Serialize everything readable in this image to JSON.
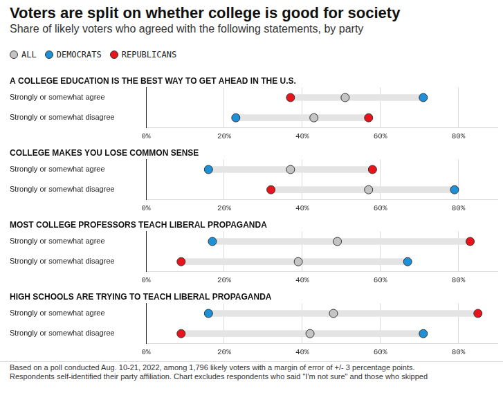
{
  "title": "Voters are split on whether college is good for society",
  "subtitle": "Share of likely voters who agreed with the following statements, by party",
  "note": [
    "Based on a poll conducted Aug. 10-21, 2022, among 1,796 likely voters with a margin of error of +/- 3 percentage points.",
    "Respondents self-identified their party affiliation. Chart excludes respondents who said \"I'm not sure\" and those who skipped"
  ],
  "chart_data": [
    {
      "type": "dot",
      "title": "A COLLEGE EDUCATION IS THE BEST WAY TO GET AHEAD IN THE U.S.",
      "orientation": "horizontal",
      "grid": true,
      "categories": [
        "Strongly or somewhat agree",
        "Strongly or somewhat disagree"
      ],
      "series": [
        {
          "name": "ALL",
          "color": "#c4c4c4",
          "values": [
            51,
            43
          ]
        },
        {
          "name": "DEMOCRATS",
          "color": "#1e90d8",
          "values": [
            71,
            23
          ]
        },
        {
          "name": "REPUBLICANS",
          "color": "#e8141c",
          "values": [
            37,
            57
          ]
        }
      ],
      "xlim": [
        0,
        90
      ],
      "xticks": [
        {
          "value": 0,
          "label": "0%"
        },
        {
          "value": 20,
          "label": "20%"
        },
        {
          "value": 40,
          "label": "40%"
        },
        {
          "value": 60,
          "label": "60%"
        },
        {
          "value": 80,
          "label": "80%"
        }
      ]
    },
    {
      "type": "dot",
      "title": "COLLEGE MAKES YOU LOSE COMMON SENSE",
      "orientation": "horizontal",
      "grid": true,
      "categories": [
        "Strongly or somewhat agree",
        "Strongly or somewhat disagree"
      ],
      "series": [
        {
          "name": "ALL",
          "color": "#c4c4c4",
          "values": [
            37,
            57
          ]
        },
        {
          "name": "DEMOCRATS",
          "color": "#1e90d8",
          "values": [
            16,
            79
          ]
        },
        {
          "name": "REPUBLICANS",
          "color": "#e8141c",
          "values": [
            58,
            32
          ]
        }
      ],
      "xlim": [
        0,
        90
      ],
      "xticks": [
        {
          "value": 0,
          "label": "0%"
        },
        {
          "value": 20,
          "label": "20%"
        },
        {
          "value": 40,
          "label": "40%"
        },
        {
          "value": 60,
          "label": "60%"
        },
        {
          "value": 80,
          "label": "80%"
        }
      ]
    },
    {
      "type": "dot",
      "title": "MOST COLLEGE PROFESSORS TEACH LIBERAL PROPAGANDA",
      "orientation": "horizontal",
      "grid": true,
      "categories": [
        "Strongly or somewhat agree",
        "Strongly or somewhat disagree"
      ],
      "series": [
        {
          "name": "ALL",
          "color": "#c4c4c4",
          "values": [
            49,
            39
          ]
        },
        {
          "name": "DEMOCRATS",
          "color": "#1e90d8",
          "values": [
            17,
            67
          ]
        },
        {
          "name": "REPUBLICANS",
          "color": "#e8141c",
          "values": [
            83,
            9
          ]
        }
      ],
      "xlim": [
        0,
        90
      ],
      "xticks": [
        {
          "value": 0,
          "label": "0%"
        },
        {
          "value": 20,
          "label": "20%"
        },
        {
          "value": 40,
          "label": "40%"
        },
        {
          "value": 60,
          "label": "60%"
        },
        {
          "value": 80,
          "label": "80%"
        }
      ]
    },
    {
      "type": "dot",
      "title": "HIGH SCHOOLS ARE TRYING TO TEACH LIBERAL PROPAGANDA",
      "orientation": "horizontal",
      "grid": true,
      "categories": [
        "Strongly or somewhat agree",
        "Strongly or somewhat disagree"
      ],
      "series": [
        {
          "name": "ALL",
          "color": "#c4c4c4",
          "values": [
            48,
            42
          ]
        },
        {
          "name": "DEMOCRATS",
          "color": "#1e90d8",
          "values": [
            16,
            71
          ]
        },
        {
          "name": "REPUBLICANS",
          "color": "#e8141c",
          "values": [
            85,
            9
          ]
        }
      ],
      "xlim": [
        0,
        90
      ],
      "xticks": [
        {
          "value": 0,
          "label": "0%"
        },
        {
          "value": 20,
          "label": "20%"
        },
        {
          "value": 40,
          "label": "40%"
        },
        {
          "value": 60,
          "label": "60%"
        },
        {
          "value": 80,
          "label": "80%"
        }
      ]
    }
  ]
}
